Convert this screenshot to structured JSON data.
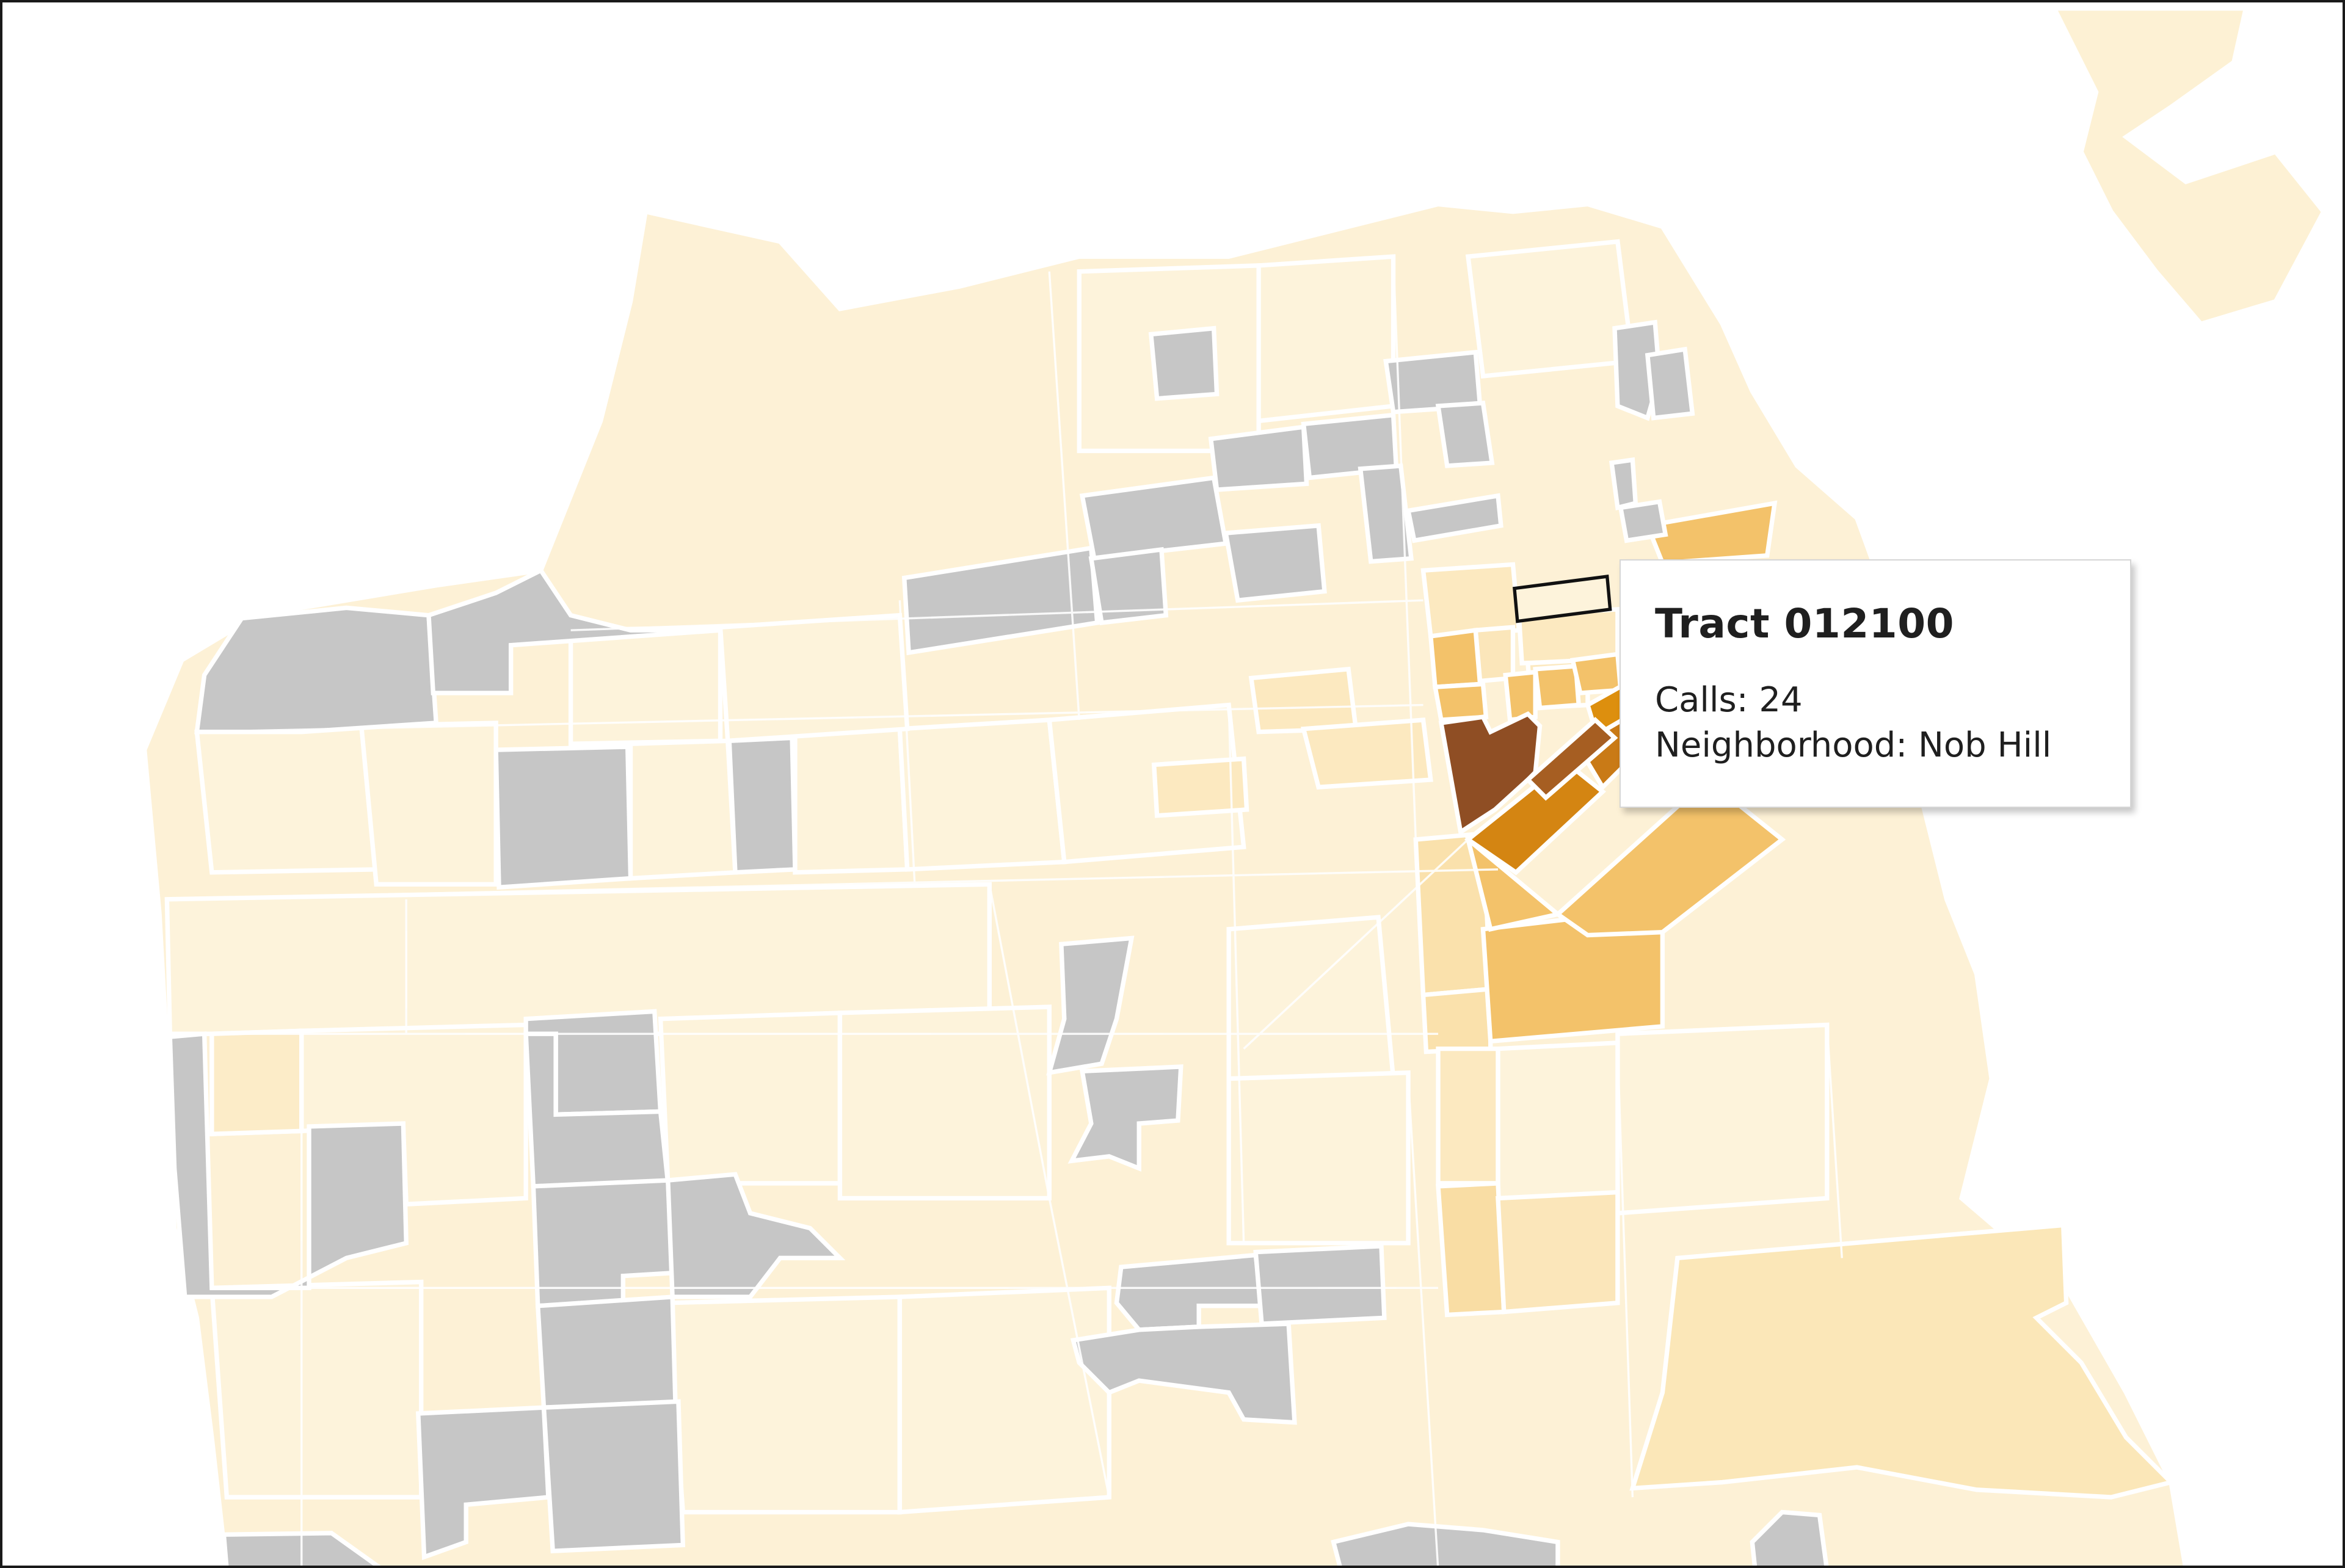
{
  "map": {
    "region": "San Francisco census tracts",
    "legend_scale": {
      "no_data": "#c6c6c6",
      "lowest": "#fff6e0",
      "low": "#fdefd0",
      "mid_low": "#fbe0a6",
      "mid": "#f2c063",
      "mid_high": "#d88a12",
      "high": "#c97a16",
      "highest": "#8b4c22"
    },
    "background_color": "#ffffff"
  },
  "tooltip": {
    "title": "Tract 012100",
    "calls_label": "Calls: 24",
    "neighborhood_label": "Neighborhood: Nob Hill"
  }
}
